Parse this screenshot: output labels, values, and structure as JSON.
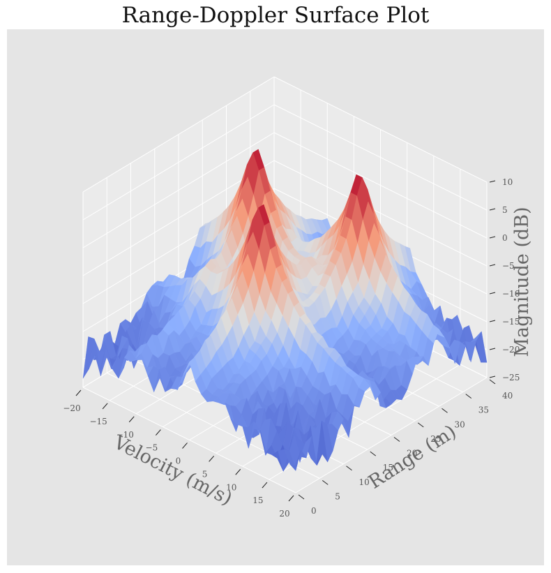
{
  "title": "Range-Doppler Surface Plot",
  "colors": {
    "background": "#e5e5e5",
    "pane": "#ebebeb",
    "grid": "#ffffff",
    "colormap": "coolwarm",
    "low": "#3b4cc0",
    "mid": "#dddddd",
    "high": "#b40426"
  },
  "chart_data": {
    "type": "surface",
    "title": "Range-Doppler Surface Plot",
    "xlabel": "Velocity (m/s)",
    "ylabel": "Range (m)",
    "zlabel": "Magnitude (dB)",
    "x_ticks": [
      -20,
      -15,
      -10,
      -5,
      0,
      5,
      10,
      15,
      20
    ],
    "y_ticks": [
      0,
      5,
      10,
      15,
      20,
      25,
      30,
      35,
      40
    ],
    "z_ticks": [
      -25,
      -20,
      -15,
      -10,
      -5,
      0,
      5,
      10
    ],
    "x_tick_labels": [
      "−20",
      "−15",
      "−10",
      "−5",
      "0",
      "5",
      "10",
      "15",
      "20"
    ],
    "y_tick_labels": [
      "0",
      "5",
      "10",
      "15",
      "20",
      "25",
      "30",
      "35",
      "40"
    ],
    "z_tick_labels": [
      "−25",
      "−20",
      "−15",
      "−10",
      "−5",
      "0",
      "5",
      "10"
    ],
    "xlim": [
      -20,
      20
    ],
    "ylim": [
      0,
      40
    ],
    "zlim": [
      -25,
      10
    ],
    "grid": true,
    "noise_floor_db": -20,
    "targets": [
      {
        "velocity": -10,
        "range": 25,
        "peak_db": 10
      },
      {
        "velocity": 5,
        "range": 30,
        "peak_db": 10
      },
      {
        "velocity": 0,
        "range": 15,
        "peak_db": 10
      }
    ]
  }
}
